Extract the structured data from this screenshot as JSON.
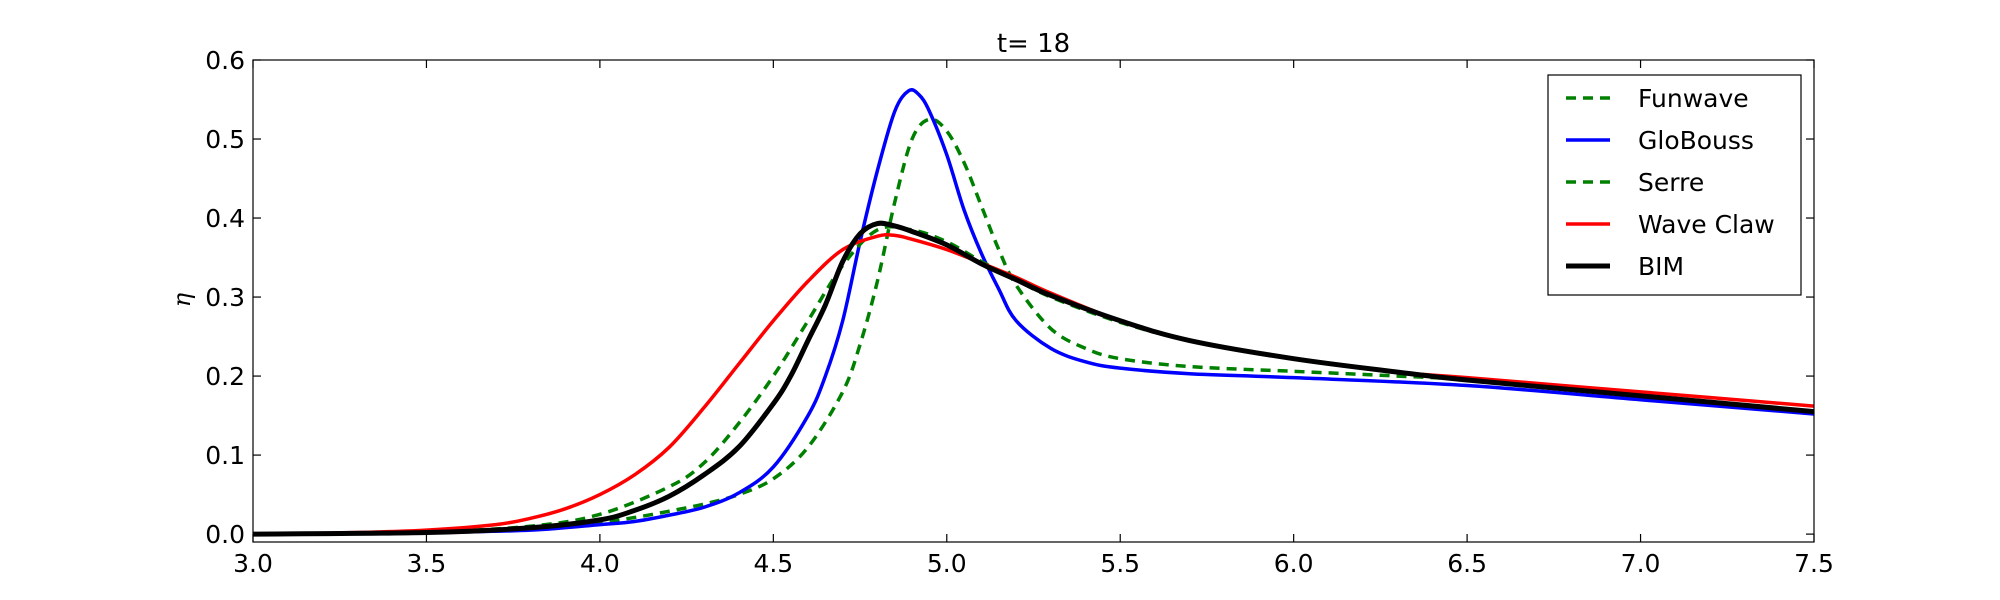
{
  "chart_data": {
    "type": "line",
    "title": "t= 18",
    "xlabel": "",
    "ylabel": "η",
    "xlim": [
      3.0,
      7.5
    ],
    "ylim": [
      -0.01,
      0.6
    ],
    "xticks": [
      "3.0",
      "3.5",
      "4.0",
      "4.5",
      "5.0",
      "5.5",
      "6.0",
      "6.5",
      "7.0",
      "7.5"
    ],
    "yticks": [
      "0.0",
      "0.1",
      "0.2",
      "0.3",
      "0.4",
      "0.5",
      "0.6"
    ],
    "grid": false,
    "legend_position": "top-right",
    "series": [
      {
        "name": "Funwave",
        "color": "#008000",
        "dash": "dashed",
        "width": "normal",
        "points": [
          [
            3.0,
            0.0
          ],
          [
            3.5,
            0.002
          ],
          [
            3.8,
            0.007
          ],
          [
            4.0,
            0.015
          ],
          [
            4.1,
            0.021
          ],
          [
            4.2,
            0.029
          ],
          [
            4.3,
            0.038
          ],
          [
            4.4,
            0.05
          ],
          [
            4.5,
            0.07
          ],
          [
            4.6,
            0.11
          ],
          [
            4.7,
            0.18
          ],
          [
            4.75,
            0.24
          ],
          [
            4.8,
            0.32
          ],
          [
            4.85,
            0.42
          ],
          [
            4.9,
            0.5
          ],
          [
            4.95,
            0.525
          ],
          [
            5.0,
            0.51
          ],
          [
            5.05,
            0.47
          ],
          [
            5.1,
            0.415
          ],
          [
            5.15,
            0.36
          ],
          [
            5.2,
            0.315
          ],
          [
            5.3,
            0.26
          ],
          [
            5.4,
            0.235
          ],
          [
            5.5,
            0.222
          ],
          [
            5.7,
            0.212
          ],
          [
            6.0,
            0.206
          ],
          [
            6.3,
            0.2
          ],
          [
            6.5,
            0.195
          ],
          [
            7.0,
            0.175
          ],
          [
            7.5,
            0.155
          ]
        ]
      },
      {
        "name": "GloBouss",
        "color": "#0000ff",
        "dash": "solid",
        "width": "normal",
        "points": [
          [
            3.0,
            0.0
          ],
          [
            3.5,
            0.002
          ],
          [
            3.8,
            0.005
          ],
          [
            4.0,
            0.012
          ],
          [
            4.1,
            0.016
          ],
          [
            4.2,
            0.024
          ],
          [
            4.3,
            0.034
          ],
          [
            4.4,
            0.052
          ],
          [
            4.5,
            0.085
          ],
          [
            4.6,
            0.15
          ],
          [
            4.65,
            0.2
          ],
          [
            4.7,
            0.27
          ],
          [
            4.75,
            0.37
          ],
          [
            4.8,
            0.46
          ],
          [
            4.85,
            0.535
          ],
          [
            4.89,
            0.561
          ],
          [
            4.92,
            0.556
          ],
          [
            4.95,
            0.535
          ],
          [
            5.0,
            0.48
          ],
          [
            5.05,
            0.41
          ],
          [
            5.1,
            0.355
          ],
          [
            5.15,
            0.31
          ],
          [
            5.2,
            0.27
          ],
          [
            5.3,
            0.235
          ],
          [
            5.4,
            0.218
          ],
          [
            5.5,
            0.21
          ],
          [
            5.7,
            0.203
          ],
          [
            6.0,
            0.198
          ],
          [
            6.5,
            0.188
          ],
          [
            7.0,
            0.17
          ],
          [
            7.5,
            0.152
          ]
        ]
      },
      {
        "name": "Serre",
        "color": "#008000",
        "dash": "dashed",
        "width": "normal",
        "points": [
          [
            3.0,
            0.0
          ],
          [
            3.5,
            0.003
          ],
          [
            3.8,
            0.01
          ],
          [
            4.0,
            0.025
          ],
          [
            4.2,
            0.06
          ],
          [
            4.3,
            0.09
          ],
          [
            4.4,
            0.14
          ],
          [
            4.5,
            0.2
          ],
          [
            4.6,
            0.27
          ],
          [
            4.7,
            0.34
          ],
          [
            4.8,
            0.385
          ],
          [
            4.9,
            0.385
          ],
          [
            5.0,
            0.37
          ],
          [
            5.1,
            0.345
          ],
          [
            5.2,
            0.322
          ],
          [
            5.3,
            0.3
          ],
          [
            5.5,
            0.268
          ],
          [
            5.7,
            0.245
          ],
          [
            6.0,
            0.222
          ],
          [
            6.3,
            0.205
          ],
          [
            6.5,
            0.196
          ],
          [
            7.0,
            0.175
          ],
          [
            7.5,
            0.155
          ]
        ]
      },
      {
        "name": "Wave Claw",
        "color": "#ff0000",
        "dash": "solid",
        "width": "normal",
        "points": [
          [
            3.0,
            0.0
          ],
          [
            3.3,
            0.002
          ],
          [
            3.5,
            0.005
          ],
          [
            3.7,
            0.012
          ],
          [
            3.8,
            0.02
          ],
          [
            3.9,
            0.032
          ],
          [
            4.0,
            0.05
          ],
          [
            4.1,
            0.075
          ],
          [
            4.2,
            0.11
          ],
          [
            4.3,
            0.16
          ],
          [
            4.4,
            0.215
          ],
          [
            4.5,
            0.27
          ],
          [
            4.6,
            0.32
          ],
          [
            4.7,
            0.36
          ],
          [
            4.8,
            0.377
          ],
          [
            4.85,
            0.378
          ],
          [
            4.9,
            0.373
          ],
          [
            5.0,
            0.36
          ],
          [
            5.1,
            0.343
          ],
          [
            5.2,
            0.325
          ],
          [
            5.3,
            0.305
          ],
          [
            5.5,
            0.27
          ],
          [
            5.7,
            0.245
          ],
          [
            6.0,
            0.222
          ],
          [
            6.3,
            0.205
          ],
          [
            6.5,
            0.198
          ],
          [
            7.0,
            0.18
          ],
          [
            7.5,
            0.162
          ]
        ]
      },
      {
        "name": "BIM",
        "color": "#000000",
        "dash": "solid",
        "width": "thick",
        "points": [
          [
            3.0,
            0.0
          ],
          [
            3.5,
            0.002
          ],
          [
            3.8,
            0.008
          ],
          [
            4.0,
            0.018
          ],
          [
            4.1,
            0.03
          ],
          [
            4.2,
            0.048
          ],
          [
            4.3,
            0.075
          ],
          [
            4.4,
            0.11
          ],
          [
            4.5,
            0.165
          ],
          [
            4.55,
            0.2
          ],
          [
            4.6,
            0.245
          ],
          [
            4.65,
            0.29
          ],
          [
            4.7,
            0.345
          ],
          [
            4.75,
            0.38
          ],
          [
            4.8,
            0.393
          ],
          [
            4.85,
            0.39
          ],
          [
            4.9,
            0.383
          ],
          [
            5.0,
            0.366
          ],
          [
            5.1,
            0.342
          ],
          [
            5.2,
            0.322
          ],
          [
            5.3,
            0.302
          ],
          [
            5.5,
            0.27
          ],
          [
            5.7,
            0.245
          ],
          [
            6.0,
            0.222
          ],
          [
            6.3,
            0.205
          ],
          [
            6.5,
            0.195
          ],
          [
            7.0,
            0.175
          ],
          [
            7.5,
            0.155
          ]
        ]
      }
    ]
  }
}
